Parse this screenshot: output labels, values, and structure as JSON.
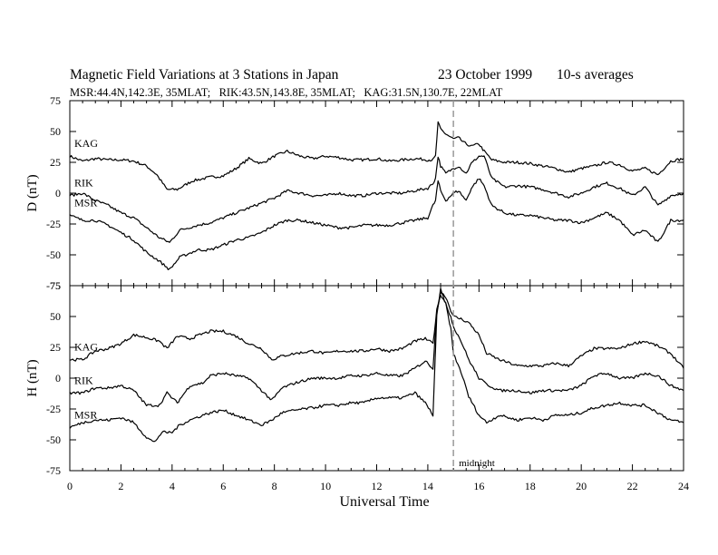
{
  "header": {
    "title": "Magnetic Field Variations at 3 Stations in Japan",
    "date": "23 October 1999",
    "averaging": "10-s averages",
    "subtitle": "MSR:44.4N,142.3E, 35MLAT;   RIK:43.5N,143.8E, 35MLAT;   KAG:31.5N,130.7E, 22MLAT"
  },
  "chart_data": {
    "type": "line",
    "xlabel": "Universal Time",
    "xlim": [
      0,
      24
    ],
    "xticks": [
      0,
      2,
      4,
      6,
      8,
      10,
      12,
      14,
      16,
      18,
      20,
      22,
      24
    ],
    "marker": {
      "x": 15,
      "label": "midnight",
      "style": "dashed",
      "color": "#999999"
    },
    "panels": [
      {
        "ylabel": "D (nT)",
        "ylim": [
          -75,
          75
        ],
        "yticks": [
          75,
          50,
          25,
          0,
          -25,
          -50,
          -75
        ],
        "series": [
          {
            "name": "KAG",
            "x": [
              0,
              0.5,
              1,
              1.5,
              2,
              2.5,
              3,
              3.4,
              3.8,
              4.2,
              4.8,
              5.5,
              6,
              6.5,
              7,
              7.5,
              8,
              8.5,
              9,
              9.5,
              10,
              10.5,
              11,
              11.5,
              12,
              12.5,
              13,
              13.5,
              14,
              14.2,
              14.3,
              14.4,
              14.5,
              14.7,
              15,
              15.2,
              15.4,
              15.7,
              16,
              16.2,
              16.5,
              17,
              17.5,
              18,
              18.5,
              19,
              19.5,
              20,
              20.5,
              21,
              21.5,
              22,
              22.5,
              23,
              23.5,
              24
            ],
            "y": [
              30,
              26,
              28,
              27,
              27,
              26,
              22,
              15,
              3,
              3,
              10,
              13,
              14,
              20,
              28,
              24,
              30,
              34,
              30,
              28,
              30,
              29,
              27,
              27,
              28,
              26,
              27,
              28,
              27,
              27,
              30,
              57,
              52,
              48,
              44,
              45,
              41,
              38,
              40,
              34,
              27,
              25,
              25,
              24,
              22,
              20,
              17,
              20,
              22,
              25,
              23,
              18,
              20,
              15,
              26,
              28
            ]
          },
          {
            "name": "RIK",
            "x": [
              0,
              0.5,
              1,
              1.5,
              2,
              2.5,
              3,
              3.5,
              3.9,
              4.3,
              5,
              5.5,
              6,
              6.5,
              7,
              7.5,
              8,
              8.5,
              9,
              9.5,
              10,
              10.5,
              11,
              11.5,
              12,
              12.5,
              13,
              13.5,
              14,
              14.2,
              14.3,
              14.4,
              14.5,
              14.7,
              15,
              15.2,
              15.5,
              15.7,
              16,
              16.2,
              16.5,
              17,
              17.5,
              18,
              18.5,
              19,
              19.5,
              20,
              20.5,
              21,
              21.5,
              22,
              22.5,
              23,
              23.5,
              24
            ],
            "y": [
              -2,
              0,
              -6,
              -10,
              -16,
              -20,
              -28,
              -36,
              -40,
              -30,
              -26,
              -24,
              -20,
              -16,
              -12,
              -8,
              -4,
              2,
              0,
              -2,
              -2,
              0,
              -2,
              -2,
              0,
              0,
              0,
              2,
              4,
              8,
              12,
              30,
              22,
              16,
              20,
              22,
              16,
              24,
              30,
              30,
              12,
              5,
              6,
              5,
              3,
              0,
              -3,
              0,
              5,
              8,
              4,
              -2,
              5,
              -10,
              -2,
              0
            ]
          },
          {
            "name": "MSR",
            "x": [
              0,
              0.5,
              1,
              1.5,
              2,
              2.5,
              3,
              3.5,
              3.9,
              4.3,
              5,
              5.5,
              6,
              6.5,
              7,
              7.5,
              8,
              8.5,
              9,
              9.5,
              10,
              10.5,
              11,
              11.5,
              12,
              12.5,
              13,
              13.5,
              14,
              14.2,
              14.3,
              14.4,
              14.5,
              14.7,
              15,
              15.2,
              15.5,
              15.7,
              16,
              16.2,
              16.5,
              17,
              17.5,
              18,
              18.5,
              19,
              19.5,
              20,
              20.5,
              21,
              21.5,
              22,
              22.5,
              23,
              23.5,
              24
            ],
            "y": [
              -18,
              -22,
              -22,
              -26,
              -32,
              -38,
              -48,
              -55,
              -62,
              -52,
              -46,
              -46,
              -42,
              -38,
              -36,
              -32,
              -26,
              -22,
              -22,
              -24,
              -26,
              -28,
              -28,
              -26,
              -26,
              -26,
              -24,
              -22,
              -20,
              -10,
              -6,
              10,
              2,
              -6,
              0,
              2,
              -6,
              4,
              12,
              6,
              -10,
              -16,
              -18,
              -18,
              -20,
              -22,
              -22,
              -24,
              -20,
              -16,
              -22,
              -34,
              -30,
              -40,
              -22,
              -22
            ]
          }
        ]
      },
      {
        "ylabel": "H (nT)",
        "ylim": [
          -75,
          75
        ],
        "yticks": [
          75,
          50,
          25,
          0,
          -25,
          -50,
          -75
        ],
        "series": [
          {
            "name": "KAG",
            "x": [
              0,
              0.5,
              1,
              1.5,
              2,
              2.5,
              3,
              3.5,
              3.8,
              4.2,
              4.7,
              5.2,
              5.5,
              6,
              6.5,
              7,
              7.5,
              7.9,
              8.3,
              8.8,
              9.5,
              10,
              10.5,
              11,
              11.5,
              12,
              12.5,
              13,
              13.5,
              13.9,
              14.2,
              14.35,
              14.5,
              14.7,
              14.9,
              15,
              15.3,
              15.6,
              16,
              16.3,
              16.8,
              17.5,
              18,
              18.5,
              19,
              19.5,
              20,
              20.5,
              21,
              21.5,
              22,
              22.5,
              23,
              23.5,
              24
            ],
            "y": [
              15,
              15,
              22,
              24,
              28,
              35,
              33,
              30,
              24,
              34,
              32,
              36,
              38,
              38,
              34,
              28,
              24,
              15,
              18,
              20,
              22,
              20,
              22,
              22,
              22,
              24,
              22,
              24,
              30,
              32,
              28,
              55,
              70,
              66,
              55,
              50,
              48,
              45,
              35,
              20,
              15,
              10,
              10,
              10,
              12,
              10,
              18,
              24,
              24,
              24,
              28,
              30,
              26,
              20,
              8
            ]
          },
          {
            "name": "RIK",
            "x": [
              0,
              0.5,
              1,
              1.5,
              2,
              2.5,
              3,
              3.5,
              3.8,
              4.2,
              4.7,
              5.2,
              5.5,
              6,
              6.5,
              7,
              7.5,
              7.9,
              8.3,
              8.8,
              9.5,
              10,
              10.5,
              11,
              11.5,
              12,
              12.5,
              13,
              13.5,
              13.9,
              14.2,
              14.35,
              14.5,
              14.7,
              14.9,
              15,
              15.3,
              15.6,
              16,
              16.3,
              16.8,
              17.5,
              18,
              18.5,
              19,
              19.5,
              20,
              20.5,
              21,
              21.5,
              22,
              22.5,
              23,
              23.5,
              24
            ],
            "y": [
              -12,
              -12,
              -8,
              -8,
              -6,
              -10,
              -22,
              -22,
              -12,
              -20,
              -6,
              -4,
              2,
              4,
              2,
              0,
              -10,
              -18,
              -8,
              -4,
              0,
              0,
              0,
              2,
              2,
              4,
              2,
              2,
              8,
              14,
              8,
              55,
              68,
              60,
              50,
              42,
              30,
              15,
              0,
              -5,
              -10,
              -10,
              -12,
              -10,
              -10,
              -10,
              -6,
              2,
              4,
              0,
              0,
              4,
              2,
              -6,
              -10
            ]
          },
          {
            "name": "MSR",
            "x": [
              0,
              0.5,
              1,
              1.5,
              2,
              2.5,
              3,
              3.3,
              3.6,
              4,
              4.3,
              4.7,
              5.2,
              5.5,
              6,
              6.5,
              7,
              7.5,
              7.9,
              8.3,
              8.8,
              9.5,
              10,
              10.5,
              11,
              11.5,
              12,
              12.5,
              13,
              13.5,
              13.9,
              14.2,
              14.35,
              14.5,
              14.7,
              14.9,
              15,
              15.3,
              15.6,
              16,
              16.3,
              16.8,
              17.5,
              18,
              18.5,
              19,
              19.5,
              20,
              20.5,
              21,
              21.5,
              22,
              22.5,
              23,
              23.5,
              24
            ],
            "y": [
              -40,
              -36,
              -34,
              -34,
              -32,
              -36,
              -48,
              -52,
              -44,
              -44,
              -38,
              -34,
              -30,
              -28,
              -26,
              -30,
              -34,
              -38,
              -34,
              -28,
              -26,
              -24,
              -22,
              -22,
              -20,
              -20,
              -16,
              -16,
              -16,
              -12,
              -20,
              -30,
              50,
              72,
              60,
              40,
              20,
              5,
              -15,
              -30,
              -36,
              -30,
              -34,
              -32,
              -34,
              -30,
              -30,
              -28,
              -24,
              -22,
              -20,
              -22,
              -22,
              -28,
              -34,
              -36
            ]
          }
        ]
      }
    ]
  }
}
